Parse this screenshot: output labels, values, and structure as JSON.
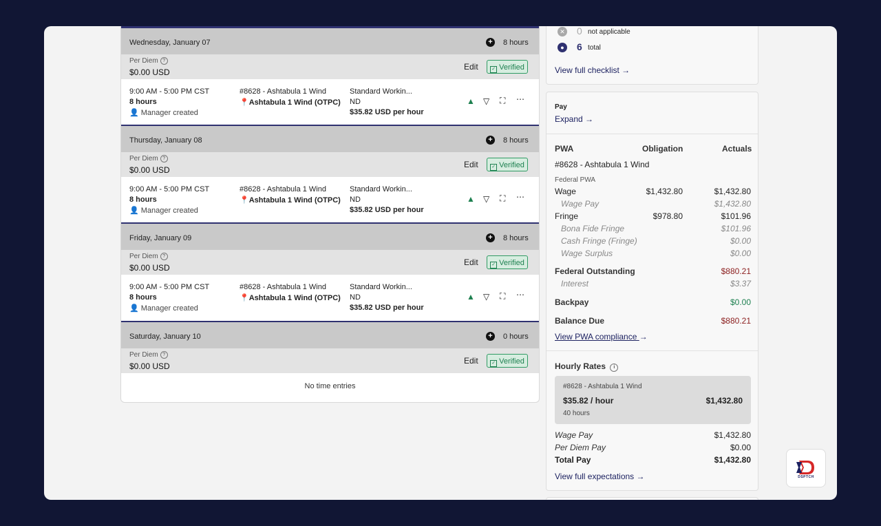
{
  "days": [
    {
      "title": "Wednesday, January 07",
      "hours": "8 hours",
      "per_diem_label": "Per Diem",
      "per_diem_value": "$0.00 USD",
      "edit": "Edit",
      "status": "Verified",
      "entry": {
        "time": "9:00 AM - 5:00 PM CST",
        "duration": "8 hours",
        "creator": "Manager created",
        "project": "#8628 - Ashtabula 1 Wind",
        "location": "Ashtabula 1 Wind (OTPC)",
        "classification": "Standard Workin...",
        "state": "ND",
        "rate": "$35.82 USD per hour"
      }
    },
    {
      "title": "Thursday, January 08",
      "hours": "8 hours",
      "per_diem_label": "Per Diem",
      "per_diem_value": "$0.00 USD",
      "edit": "Edit",
      "status": "Verified",
      "entry": {
        "time": "9:00 AM - 5:00 PM CST",
        "duration": "8 hours",
        "creator": "Manager created",
        "project": "#8628 - Ashtabula 1 Wind",
        "location": "Ashtabula 1 Wind (OTPC)",
        "classification": "Standard Workin...",
        "state": "ND",
        "rate": "$35.82 USD per hour"
      }
    },
    {
      "title": "Friday, January 09",
      "hours": "8 hours",
      "per_diem_label": "Per Diem",
      "per_diem_value": "$0.00 USD",
      "edit": "Edit",
      "status": "Verified",
      "entry": {
        "time": "9:00 AM - 5:00 PM CST",
        "duration": "8 hours",
        "creator": "Manager created",
        "project": "#8628 - Ashtabula 1 Wind",
        "location": "Ashtabula 1 Wind (OTPC)",
        "classification": "Standard Workin...",
        "state": "ND",
        "rate": "$35.82 USD per hour"
      }
    },
    {
      "title": "Saturday, January 10",
      "hours": "0 hours",
      "per_diem_label": "Per Diem",
      "per_diem_value": "$0.00 USD",
      "edit": "Edit",
      "status": "Verified",
      "no_entries": "No time entries"
    }
  ],
  "checklist": {
    "not_applicable_count": "0",
    "not_applicable_label": "not applicable",
    "total_count": "6",
    "total_label": "total",
    "view_link": "View full checklist"
  },
  "pay": {
    "title": "Pay",
    "expand": "Expand",
    "headers": {
      "pwa": "PWA",
      "obligation": "Obligation",
      "actuals": "Actuals"
    },
    "project": "#8628 - Ashtabula 1 Wind",
    "federal_pwa": "Federal PWA",
    "wage": {
      "label": "Wage",
      "obligation": "$1,432.80",
      "actual": "$1,432.80"
    },
    "wage_pay": {
      "label": "Wage Pay",
      "actual": "$1,432.80"
    },
    "fringe": {
      "label": "Fringe",
      "obligation": "$978.80",
      "actual": "$101.96"
    },
    "bona_fide": {
      "label": "Bona Fide Fringe",
      "actual": "$101.96"
    },
    "cash_fringe": {
      "label": "Cash Fringe (Fringe)",
      "actual": "$0.00"
    },
    "wage_surplus": {
      "label": "Wage Surplus",
      "actual": "$0.00"
    },
    "federal_outstanding": {
      "label": "Federal Outstanding",
      "value": "$880.21"
    },
    "interest": {
      "label": "Interest",
      "value": "$3.37"
    },
    "backpay": {
      "label": "Backpay",
      "value": "$0.00"
    },
    "balance_due": {
      "label": "Balance Due",
      "value": "$880.21"
    },
    "compliance_link": "View PWA compliance"
  },
  "hourly": {
    "title": "Hourly Rates",
    "project": "#8628 - Ashtabula 1 Wind",
    "rate": "$35.82 / hour",
    "total": "$1,432.80",
    "hours": "40 hours",
    "wage_pay": {
      "label": "Wage Pay",
      "value": "$1,432.80"
    },
    "per_diem_pay": {
      "label": "Per Diem Pay",
      "value": "$0.00"
    },
    "total_pay": {
      "label": "Total Pay",
      "value": "$1,432.80"
    },
    "expectations_link": "View full expectations"
  },
  "logo_text": "DSPTCH",
  "colors": {
    "accent": "#2f3170",
    "verified": "#1e8050",
    "danger": "#8b1e1e",
    "background": "#111634"
  }
}
